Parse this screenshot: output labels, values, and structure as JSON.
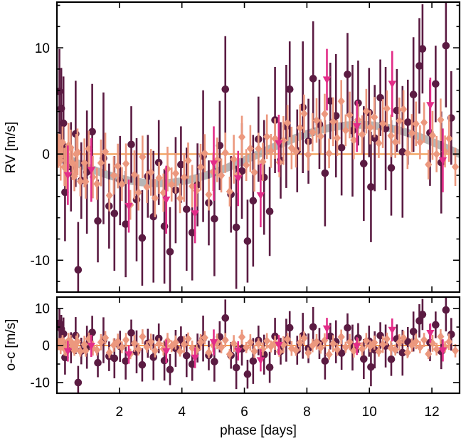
{
  "chart_data": {
    "type": "scatter",
    "title": "",
    "xlabel": "phase [days]",
    "xlim": [
      0,
      12.886
    ],
    "xticks_major": [
      2,
      4,
      6,
      8,
      10,
      12
    ],
    "grid": false,
    "legend": "none",
    "zero_line_color": "#f19a4d",
    "frame_color": "#000000",
    "panels": [
      {
        "name": "rv",
        "ylabel": "RV [m/s]",
        "ylim": [
          -13.0,
          14.3
        ],
        "yticks_major": [
          -10,
          0,
          10
        ],
        "yticks_minor": [
          -12,
          -8,
          -6,
          -4,
          -2,
          2,
          4,
          6,
          8,
          12,
          14
        ]
      },
      {
        "name": "residuals",
        "ylabel": "o-c [m/s]",
        "ylim": [
          -12.9,
          13.1
        ],
        "yticks_major": [
          -10,
          0,
          10
        ],
        "yticks_minor": [
          -5,
          5
        ]
      }
    ],
    "model": {
      "type": "sinusoid",
      "amplitude_ms": 2.75,
      "period_days": 12.89,
      "rv_at_phase0": 0,
      "color": "#9e9e9e",
      "opacity": 0.75,
      "linewidth": 11
    },
    "series": [
      {
        "name": "dataset-circles",
        "marker": "circle",
        "color": "#5b1b42",
        "errorbar_width": 2.6,
        "points": [
          [
            0.08,
            5.9,
            4.0
          ],
          [
            0.14,
            4.3,
            3.8
          ],
          [
            0.21,
            2.9,
            4.4
          ],
          [
            0.26,
            -3.6,
            4.6
          ],
          [
            0.45,
            -1.2,
            4.2
          ],
          [
            0.6,
            1.9,
            5.0
          ],
          [
            0.68,
            -10.9,
            4.5
          ],
          [
            0.78,
            -2.5,
            3.6
          ],
          [
            0.96,
            -1.7,
            5.8
          ],
          [
            1.13,
            2.1,
            4.5
          ],
          [
            1.31,
            -6.3,
            3.9
          ],
          [
            1.49,
            -0.4,
            6.2
          ],
          [
            1.67,
            -4.9,
            4.0
          ],
          [
            1.84,
            -5.6,
            5.4
          ],
          [
            2.02,
            -2.5,
            4.2
          ],
          [
            2.2,
            -6.6,
            5.0
          ],
          [
            2.38,
            0.9,
            3.6
          ],
          [
            2.55,
            -4.3,
            5.8
          ],
          [
            2.73,
            -7.9,
            4.5
          ],
          [
            2.91,
            -2.1,
            3.9
          ],
          [
            3.09,
            -5.9,
            6.2
          ],
          [
            3.26,
            -0.8,
            4.0
          ],
          [
            3.44,
            -6.8,
            5.4
          ],
          [
            3.62,
            -9.2,
            4.2
          ],
          [
            3.8,
            -3.4,
            5.0
          ],
          [
            3.97,
            -1.0,
            3.6
          ],
          [
            4.15,
            -5.2,
            5.8
          ],
          [
            4.33,
            -7.4,
            4.5
          ],
          [
            4.5,
            -2.9,
            3.9
          ],
          [
            4.68,
            -0.2,
            6.2
          ],
          [
            4.86,
            -4.6,
            4.0
          ],
          [
            5.04,
            -6.1,
            5.4
          ],
          [
            5.21,
            0.8,
            4.2
          ],
          [
            5.39,
            6.1,
            5.0
          ],
          [
            5.57,
            -3.8,
            3.6
          ],
          [
            5.74,
            -6.9,
            5.8
          ],
          [
            5.92,
            -1.6,
            4.5
          ],
          [
            6.1,
            -8.2,
            3.9
          ],
          [
            6.28,
            -4.4,
            6.2
          ],
          [
            6.45,
            1.4,
            4.0
          ],
          [
            6.63,
            -2.2,
            5.4
          ],
          [
            6.81,
            -5.4,
            4.2
          ],
          [
            6.98,
            3.2,
            5.0
          ],
          [
            7.16,
            -0.6,
            3.6
          ],
          [
            7.34,
            2.6,
            5.8
          ],
          [
            7.45,
            6.1,
            4.5
          ],
          [
            7.69,
            0.3,
            3.9
          ],
          [
            7.87,
            4.4,
            6.2
          ],
          [
            8.05,
            1.2,
            4.0
          ],
          [
            8.2,
            7.1,
            5.4
          ],
          [
            8.4,
            2.8,
            4.2
          ],
          [
            8.58,
            -1.8,
            5.0
          ],
          [
            8.75,
            5.0,
            3.6
          ],
          [
            8.93,
            3.6,
            5.8
          ],
          [
            9.11,
            0.6,
            4.5
          ],
          [
            9.3,
            7.5,
            3.9
          ],
          [
            9.46,
            2.2,
            6.2
          ],
          [
            9.64,
            4.8,
            4.0
          ],
          [
            9.82,
            -0.9,
            5.4
          ],
          [
            9.99,
            3.9,
            4.2
          ],
          [
            10.05,
            -3.1,
            5.2
          ],
          [
            10.17,
            1.5,
            5.0
          ],
          [
            10.35,
            5.3,
            3.6
          ],
          [
            10.52,
            2.4,
            5.8
          ],
          [
            10.7,
            -1.3,
            4.5
          ],
          [
            10.88,
            4.1,
            3.9
          ],
          [
            11.06,
            0.2,
            6.2
          ],
          [
            11.23,
            3.0,
            4.0
          ],
          [
            11.41,
            5.6,
            5.4
          ],
          [
            11.6,
            8.3,
            4.5
          ],
          [
            11.7,
            9.9,
            4.2
          ],
          [
            11.94,
            2.0,
            5.0
          ],
          [
            12.12,
            6.6,
            3.6
          ],
          [
            12.3,
            -0.8,
            4.8
          ],
          [
            12.45,
            10.2,
            5.8
          ],
          [
            12.62,
            3.4,
            4.4
          ]
        ]
      },
      {
        "name": "dataset-diamonds",
        "marker": "diamond",
        "color": "#ec987e",
        "errorbar_width": 2.6,
        "points": [
          [
            0.05,
            0.3,
            1.6
          ],
          [
            0.12,
            -0.6,
            1.9
          ],
          [
            0.18,
            1.1,
            1.5
          ],
          [
            0.3,
            -1.3,
            2.0
          ],
          [
            0.44,
            0.6,
            1.7
          ],
          [
            0.56,
            -2.1,
            1.4
          ],
          [
            0.66,
            0.2,
            2.2
          ],
          [
            0.92,
            -2.6,
            1.6
          ],
          [
            0.1,
            0.37,
            1.5
          ],
          [
            0.24,
            -1.22,
            1.8
          ],
          [
            0.37,
            0.81,
            2.1
          ],
          [
            0.5,
            -0.86,
            1.6
          ],
          [
            0.62,
            -0.02,
            1.9
          ],
          [
            0.75,
            -2.58,
            1.4
          ],
          [
            0.88,
            -0.84,
            2.3
          ],
          [
            1.02,
            0.49,
            1.7
          ],
          [
            1.15,
            -2.17,
            2.0
          ],
          [
            1.28,
            -2.81,
            1.5
          ],
          [
            1.41,
            -0.84,
            2.2
          ],
          [
            1.55,
            0.21,
            1.8
          ],
          [
            1.68,
            -3.9,
            1.5
          ],
          [
            1.82,
            -2.02,
            1.8
          ],
          [
            1.95,
            -1.13,
            2.1
          ],
          [
            2.08,
            -2.83,
            1.6
          ],
          [
            2.21,
            -0.91,
            1.9
          ],
          [
            2.35,
            -4.79,
            1.4
          ],
          [
            2.48,
            -1.96,
            2.3
          ],
          [
            2.61,
            -3.62,
            1.7
          ],
          [
            2.74,
            -0.27,
            2.0
          ],
          [
            2.88,
            -3.11,
            1.5
          ],
          [
            3.01,
            -1.73,
            2.2
          ],
          [
            3.14,
            -4.15,
            1.8
          ],
          [
            3.27,
            -2.25,
            1.5
          ],
          [
            3.41,
            -3.64,
            1.8
          ],
          [
            3.54,
            -1.41,
            2.1
          ],
          [
            3.67,
            -2.87,
            1.6
          ],
          [
            3.8,
            -1.82,
            1.9
          ],
          [
            3.94,
            -4.17,
            1.4
          ],
          [
            4.07,
            -2.2,
            2.3
          ],
          [
            4.2,
            -0.62,
            1.7
          ],
          [
            4.33,
            -3.03,
            2.0
          ],
          [
            4.47,
            -3.44,
            1.5
          ],
          [
            4.6,
            -1.24,
            2.2
          ],
          [
            4.73,
            0.07,
            1.8
          ],
          [
            4.86,
            -3.82,
            1.5
          ],
          [
            5.0,
            -1.68,
            1.8
          ],
          [
            5.13,
            -0.55,
            2.1
          ],
          [
            5.26,
            -2.02,
            1.6
          ],
          [
            5.39,
            0.12,
            1.9
          ],
          [
            5.53,
            -3.53,
            1.4
          ],
          [
            5.66,
            -0.49,
            2.3
          ],
          [
            5.79,
            -1.95,
            1.7
          ],
          [
            5.92,
            1.6,
            2.0
          ],
          [
            6.06,
            -1.04,
            1.5
          ],
          [
            6.19,
            0.52,
            2.2
          ],
          [
            6.32,
            -1.73,
            1.8
          ],
          [
            6.45,
            0.5,
            1.5
          ],
          [
            6.59,
            -0.73,
            1.8
          ],
          [
            6.72,
            1.63,
            2.1
          ],
          [
            6.85,
            0.29,
            1.6
          ],
          [
            6.98,
            1.45,
            1.9
          ],
          [
            7.12,
            -0.78,
            1.4
          ],
          [
            7.25,
            1.27,
            2.3
          ],
          [
            7.38,
            2.92,
            1.7
          ],
          [
            7.51,
            0.57,
            2.0
          ],
          [
            7.65,
            0.23,
            1.5
          ],
          [
            7.78,
            2.47,
            2.2
          ],
          [
            7.91,
            3.8,
            1.8
          ],
          [
            8.04,
            -0.07,
            1.5
          ],
          [
            8.18,
            2.05,
            1.8
          ],
          [
            8.31,
            3.16,
            2.1
          ],
          [
            8.44,
            1.67,
            1.6
          ],
          [
            8.57,
            3.77,
            1.9
          ],
          [
            8.71,
            0.06,
            1.4
          ],
          [
            8.84,
            3.04,
            2.3
          ],
          [
            8.97,
            1.51,
            1.7
          ],
          [
            9.1,
            4.97,
            2.0
          ],
          [
            9.24,
            2.23,
            1.5
          ],
          [
            9.37,
            3.67,
            2.2
          ],
          [
            9.5,
            1.31,
            1.8
          ],
          [
            9.63,
            3.23,
            1.5
          ],
          [
            9.77,
            1.84,
            1.8
          ],
          [
            9.9,
            4.03,
            2.1
          ],
          [
            10.03,
            2.51,
            1.6
          ],
          [
            10.16,
            3.47,
            1.9
          ],
          [
            10.3,
            1.02,
            1.4
          ],
          [
            10.43,
            2.86,
            2.3
          ],
          [
            10.56,
            4.29,
            1.7
          ],
          [
            10.69,
            1.72,
            2.0
          ],
          [
            10.83,
            1.13,
            1.5
          ],
          [
            10.96,
            3.12,
            2.2
          ],
          [
            11.09,
            4.21,
            1.8
          ],
          [
            11.22,
            0.09,
            1.5
          ],
          [
            11.36,
            1.96,
            1.8
          ],
          [
            11.49,
            2.84,
            2.1
          ],
          [
            11.62,
            1.11,
            1.6
          ],
          [
            11.75,
            2.97,
            1.9
          ],
          [
            11.89,
            -0.99,
            1.4
          ],
          [
            12.02,
            1.75,
            2.3
          ],
          [
            12.15,
            -0.01,
            1.7
          ],
          [
            12.28,
            3.22,
            2.0
          ],
          [
            12.42,
            0.24,
            1.5
          ],
          [
            12.55,
            1.46,
            2.2
          ],
          [
            12.75,
            -1.21,
            1.8
          ]
        ]
      },
      {
        "name": "dataset-triangles",
        "marker": "triangle-down",
        "color": "#e22d88",
        "errorbar_width": 2.6,
        "points": [
          [
            0.35,
            -2.0,
            2.8
          ],
          [
            1.1,
            -1.5,
            3.0
          ],
          [
            2.3,
            -4.9,
            2.5
          ],
          [
            3.5,
            -4.3,
            3.2
          ],
          [
            4.42,
            -5.6,
            2.8
          ],
          [
            5.02,
            -0.9,
            3.5
          ],
          [
            5.8,
            -2.3,
            2.6
          ],
          [
            6.52,
            -3.9,
            3.0
          ],
          [
            7.1,
            1.0,
            2.7
          ],
          [
            8.64,
            7.0,
            2.9
          ],
          [
            9.6,
            2.6,
            2.4
          ],
          [
            10.73,
            6.6,
            3.1
          ],
          [
            11.95,
            4.6,
            2.6
          ],
          [
            12.35,
            -0.6,
            3.0
          ]
        ]
      }
    ]
  }
}
